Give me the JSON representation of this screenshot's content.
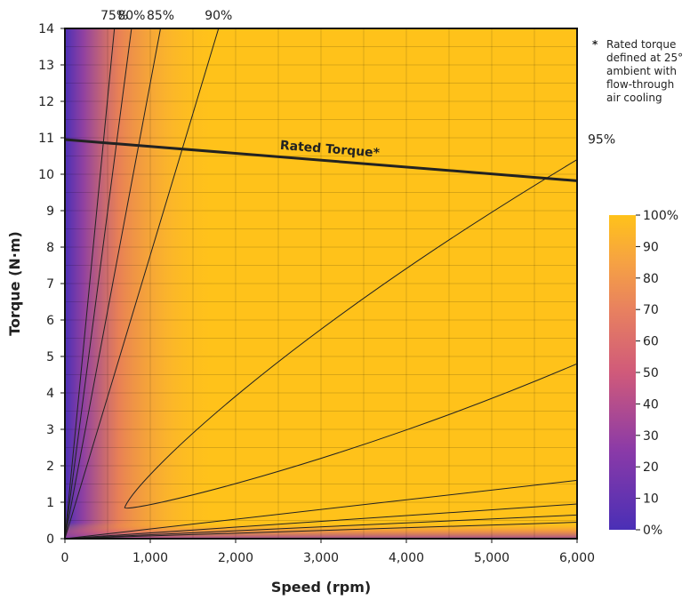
{
  "chart_data": {
    "type": "heatmap",
    "title": "",
    "xlabel": "Speed (rpm)",
    "ylabel": "Torque (N·m)",
    "xlim": [
      0,
      6000
    ],
    "ylim": [
      0,
      14
    ],
    "x_ticks": [
      0,
      1000,
      2000,
      3000,
      4000,
      5000,
      6000
    ],
    "x_tick_labels": [
      "0",
      "1,000",
      "2,000",
      "3,000",
      "4,000",
      "5,000",
      "6,000"
    ],
    "y_ticks": [
      0,
      1,
      2,
      3,
      4,
      5,
      6,
      7,
      8,
      9,
      10,
      11,
      12,
      13,
      14
    ],
    "y_tick_labels": [
      "0",
      "1",
      "2",
      "3",
      "4",
      "5",
      "6",
      "7",
      "8",
      "9",
      "10",
      "11",
      "12",
      "13",
      "14"
    ],
    "grid": true,
    "colors": {
      "low": "#4a2fb6",
      "mid": "#e06a6a",
      "high": "#ffc21a"
    },
    "colorbar": {
      "range": [
        0,
        100
      ],
      "ticks": [
        0,
        10,
        20,
        30,
        40,
        50,
        60,
        70,
        80,
        90,
        100
      ],
      "tick_labels": [
        "0%",
        "10",
        "20",
        "30",
        "40",
        "50",
        "60",
        "70",
        "80",
        "90",
        "100%"
      ]
    },
    "efficiency_contours": [
      {
        "label": "75%",
        "points": [
          [
            0,
            0
          ],
          [
            580,
            14
          ]
        ]
      },
      {
        "label": "80%",
        "points": [
          [
            0,
            0
          ],
          [
            780,
            14
          ]
        ]
      },
      {
        "label": "85%",
        "points": [
          [
            0,
            0
          ],
          [
            1120,
            14
          ]
        ]
      },
      {
        "label": "90%",
        "points": [
          [
            0,
            0
          ],
          [
            1800,
            14
          ]
        ]
      },
      {
        "label": "95%",
        "points": [
          [
            6000,
            10.4
          ],
          [
            700,
            0.85
          ],
          [
            6000,
            4.8
          ]
        ]
      },
      {
        "label": "",
        "points": [
          [
            0,
            0
          ],
          [
            6000,
            1.6
          ]
        ]
      },
      {
        "label": "",
        "points": [
          [
            0,
            0
          ],
          [
            6000,
            0.95
          ]
        ]
      },
      {
        "label": "",
        "points": [
          [
            0,
            0
          ],
          [
            6000,
            0.65
          ]
        ]
      },
      {
        "label": "",
        "points": [
          [
            0,
            0
          ],
          [
            6000,
            0.45
          ]
        ]
      }
    ],
    "rated_torque": {
      "label": "Rated Torque*",
      "points": [
        [
          0,
          10.95
        ],
        [
          6000,
          9.82
        ]
      ]
    },
    "footnote": {
      "marker": "*",
      "lines": [
        "Rated torque",
        "defined at 25°",
        "ambient with",
        "flow-through",
        "air cooling"
      ]
    }
  }
}
